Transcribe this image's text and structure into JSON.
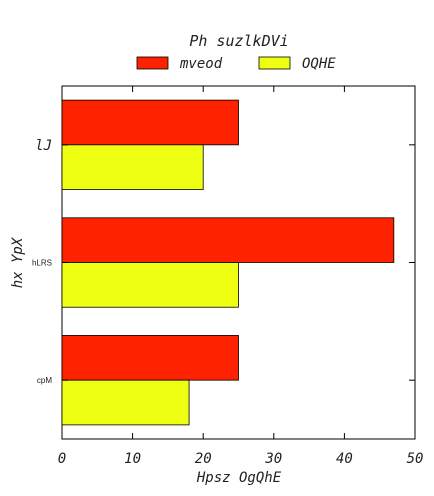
{
  "chart_data": {
    "type": "bar",
    "orientation": "horizontal",
    "title": "Ph suzlkDVi",
    "xlabel": "Hpsz OgQhE",
    "ylabel": "hx YpX",
    "categories": [
      "lJ",
      "hLRS",
      "cpM"
    ],
    "series": [
      {
        "name": "mveod",
        "color": "#ff2200",
        "values": [
          25,
          47,
          25
        ]
      },
      {
        "name": "OQHE",
        "color": "#eeff11",
        "values": [
          20,
          25,
          18
        ]
      }
    ],
    "xlim": [
      0,
      50
    ],
    "xticks": [
      "0",
      "10",
      "20",
      "30",
      "40",
      "50"
    ],
    "grid": false,
    "legend_position": "top-center"
  }
}
